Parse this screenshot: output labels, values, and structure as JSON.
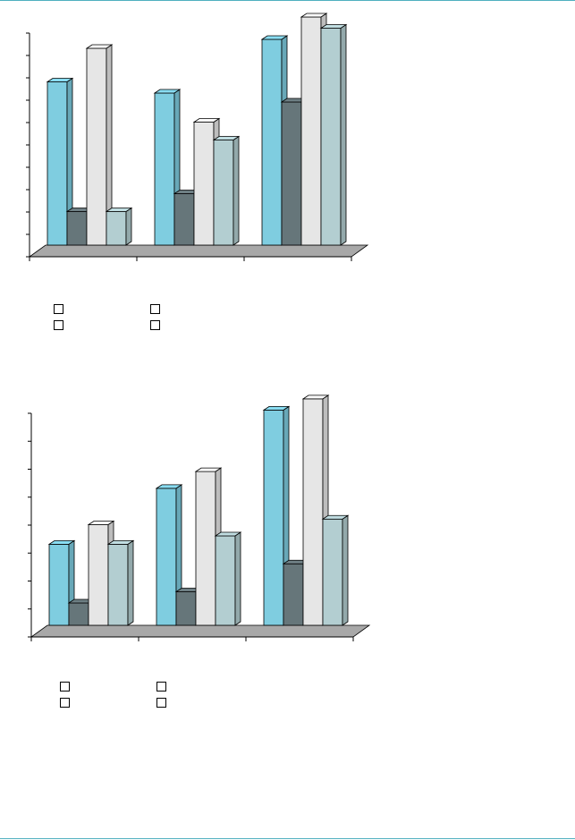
{
  "chart_data": [
    {
      "type": "bar",
      "style": "3d-clustered-column",
      "categories": [
        "",
        "",
        ""
      ],
      "series": [
        {
          "values": [
            7.3,
            6.8,
            9.2
          ]
        },
        {
          "values": [
            1.5,
            2.3,
            6.4
          ]
        },
        {
          "values": [
            8.8,
            5.5,
            10.2
          ]
        },
        {
          "values": [
            1.5,
            4.7,
            9.7
          ]
        }
      ],
      "ylim": [
        0,
        10
      ],
      "yticks": 10,
      "grid": false,
      "legend_position": "bottom-left",
      "colors": [
        "#7fcde0",
        "#66767a",
        "#e6e6e6",
        "#b3ced1"
      ]
    },
    {
      "type": "bar",
      "style": "3d-clustered-column",
      "categories": [
        "",
        "",
        ""
      ],
      "series": [
        {
          "values": [
            2.9,
            4.9,
            7.7
          ]
        },
        {
          "values": [
            0.8,
            1.2,
            2.2
          ]
        },
        {
          "values": [
            3.6,
            5.5,
            8.1
          ]
        },
        {
          "values": [
            2.9,
            3.2,
            3.8
          ]
        }
      ],
      "ylim": [
        0,
        8
      ],
      "yticks": 8,
      "grid": false,
      "legend_position": "bottom-left",
      "colors": [
        "#7fcde0",
        "#66767a",
        "#e6e6e6",
        "#b3ced1"
      ]
    }
  ]
}
